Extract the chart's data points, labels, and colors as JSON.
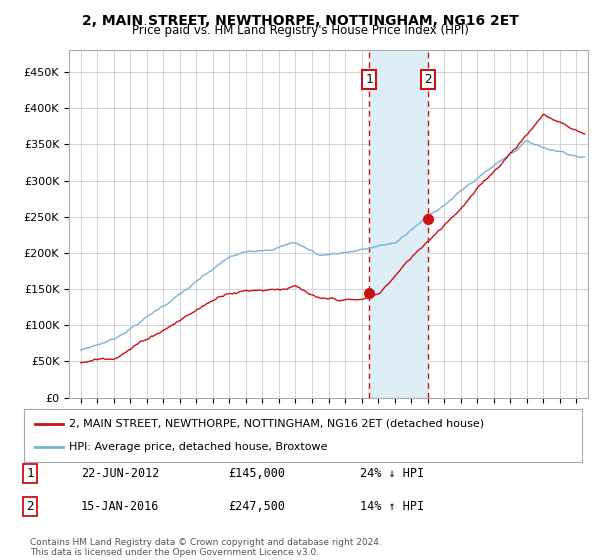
{
  "title": "2, MAIN STREET, NEWTHORPE, NOTTINGHAM, NG16 2ET",
  "subtitle": "Price paid vs. HM Land Registry's House Price Index (HPI)",
  "ylim": [
    0,
    480000
  ],
  "yticks": [
    0,
    50000,
    100000,
    150000,
    200000,
    250000,
    300000,
    350000,
    400000,
    450000
  ],
  "ytick_labels": [
    "£0",
    "£50K",
    "£100K",
    "£150K",
    "£200K",
    "£250K",
    "£300K",
    "£350K",
    "£400K",
    "£450K"
  ],
  "hpi_color": "#7ab3d4",
  "price_color": "#cc1111",
  "marker1_price": 145000,
  "marker2_price": 247500,
  "sale1_label": "1",
  "sale2_label": "2",
  "sale1_year": 2012.47,
  "sale2_year": 2016.04,
  "legend1": "2, MAIN STREET, NEWTHORPE, NOTTINGHAM, NG16 2ET (detached house)",
  "legend2": "HPI: Average price, detached house, Broxtowe",
  "annotation1_date": "22-JUN-2012",
  "annotation1_price": "£145,000",
  "annotation1_hpi": "24% ↓ HPI",
  "annotation2_date": "15-JAN-2016",
  "annotation2_price": "£247,500",
  "annotation2_hpi": "14% ↑ HPI",
  "footer": "Contains HM Land Registry data © Crown copyright and database right 2024.\nThis data is licensed under the Open Government Licence v3.0.",
  "background_color": "#ffffff",
  "grid_color": "#cccccc",
  "shade_color": "#ddeef7",
  "xlim_left": 1994.3,
  "xlim_right": 2025.7
}
